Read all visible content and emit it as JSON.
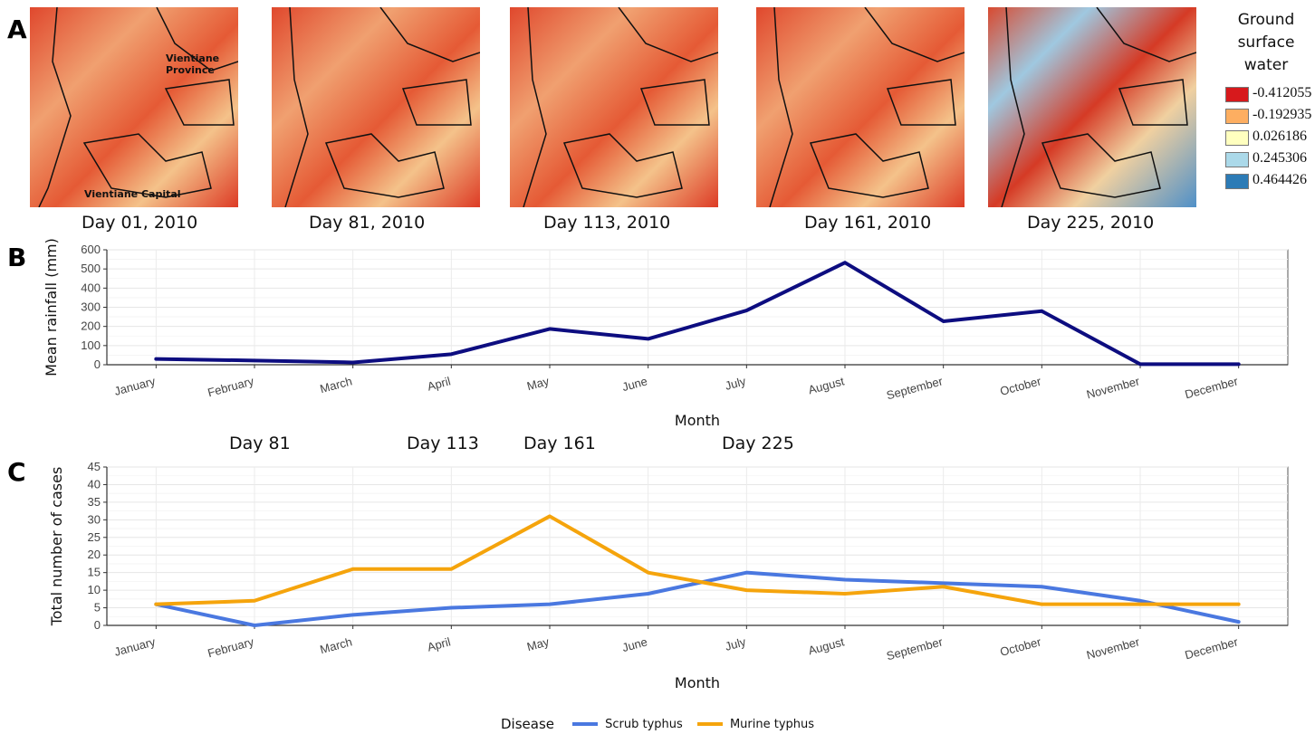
{
  "panel_letters": [
    "A",
    "B",
    "C"
  ],
  "panel_a": {
    "maps": [
      {
        "caption": "Day 01, 2010"
      },
      {
        "caption": "Day 81, 2010"
      },
      {
        "caption": "Day 113, 2010"
      },
      {
        "caption": "Day 161, 2010"
      },
      {
        "caption": "Day 225, 2010"
      }
    ],
    "map_labels": {
      "province": "Vientiane Province",
      "capital": "Vientiane Capital"
    },
    "legend": {
      "title": "Ground surface water",
      "entries": [
        {
          "value": "-0.412055",
          "color": "#d7191c"
        },
        {
          "value": "-0.192935",
          "color": "#fdae61"
        },
        {
          "value": "0.026186",
          "color": "#ffffbf"
        },
        {
          "value": "0.245306",
          "color": "#abd9e9"
        },
        {
          "value": "0.464426",
          "color": "#2c7bb6"
        }
      ]
    }
  },
  "day_labels": [
    "Day 81",
    "Day 113",
    "Day 161",
    "Day 225"
  ],
  "chart_data": [
    {
      "type": "line",
      "xlabel": "Month",
      "ylabel": "Mean rainfall (mm)",
      "ylim": [
        0,
        600
      ],
      "yticks": [
        0,
        100,
        200,
        300,
        400,
        500,
        600
      ],
      "grid": true,
      "categories": [
        "January",
        "February",
        "March",
        "April",
        "May",
        "June",
        "July",
        "August",
        "September",
        "October",
        "November",
        "December"
      ],
      "series": [
        {
          "color": "#0d0d80",
          "values": [
            30,
            22,
            12,
            55,
            187,
            135,
            283,
            533,
            227,
            280,
            3,
            3
          ]
        }
      ]
    },
    {
      "type": "line",
      "xlabel": "Month",
      "ylabel": "Total number of cases",
      "ylim": [
        0,
        45
      ],
      "yticks": [
        0,
        5,
        10,
        15,
        20,
        25,
        30,
        35,
        40,
        45
      ],
      "grid": true,
      "legend_title": "Disease",
      "legend_position": "bottom",
      "categories": [
        "January",
        "February",
        "March",
        "April",
        "May",
        "June",
        "July",
        "August",
        "September",
        "October",
        "November",
        "December"
      ],
      "series": [
        {
          "name": "Scrub typhus",
          "color": "#4a78e0",
          "values": [
            6,
            0,
            3,
            5,
            6,
            9,
            15,
            13,
            12,
            11,
            7,
            1
          ]
        },
        {
          "name": "Murine typhus",
          "color": "#f5a40c",
          "values": [
            6,
            7,
            16,
            16,
            31,
            15,
            10,
            9,
            11,
            6,
            6,
            6
          ]
        }
      ]
    }
  ]
}
